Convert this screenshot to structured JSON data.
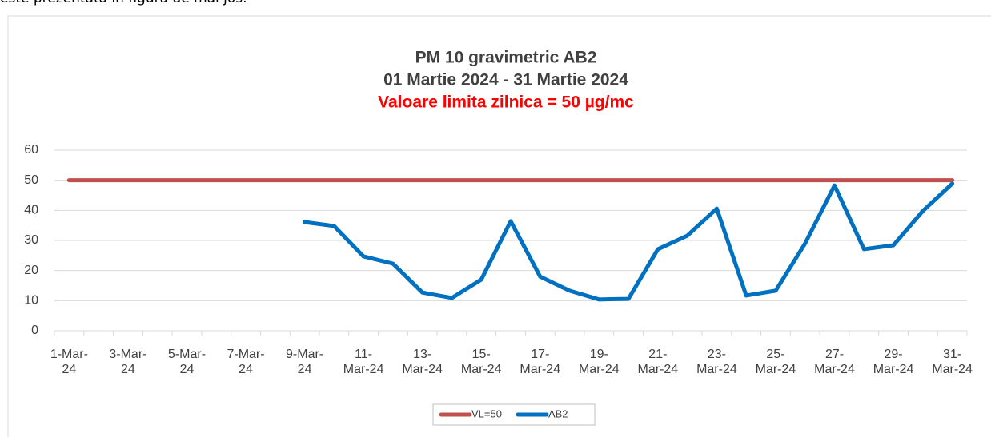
{
  "intro_text": "este prezentată în figura de mai jos.",
  "chart_data": {
    "type": "line",
    "title": "PM 10 gravimetric AB2",
    "subtitle": "01 Martie 2024 - 31 Martie 2024",
    "annotation": "Valoare limita zilnica = 50 µg/mc",
    "categories": [
      "1-Mar-24",
      null,
      "3-Mar-24",
      null,
      "5-Mar-24",
      null,
      "7-Mar-24",
      null,
      "9-Mar-24",
      null,
      "11-Mar-24",
      null,
      "13-Mar-24",
      null,
      "15-Mar-24",
      null,
      "17-Mar-24",
      null,
      "19-Mar-24",
      null,
      "21-Mar-24",
      null,
      "23-Mar-24",
      null,
      "25-Mar-24",
      null,
      "27-Mar-24",
      null,
      "29-Mar-24",
      null,
      "31-Mar-24"
    ],
    "series": [
      {
        "name": "VL=50",
        "color": "#c0504d",
        "values": [
          50,
          50,
          50,
          50,
          50,
          50,
          50,
          50,
          50,
          50,
          50,
          50,
          50,
          50,
          50,
          50,
          50,
          50,
          50,
          50,
          50,
          50,
          50,
          50,
          50,
          50,
          50,
          50,
          50,
          50,
          50
        ]
      },
      {
        "name": "AB2",
        "color": "#0070c0",
        "values": [
          null,
          null,
          null,
          null,
          null,
          null,
          null,
          null,
          36.1,
          34.8,
          24.7,
          22.3,
          12.7,
          10.9,
          17,
          36.4,
          18,
          13.3,
          10.4,
          10.6,
          27.1,
          31.6,
          40.6,
          11.7,
          13.3,
          29,
          48.3,
          27.1,
          28.4,
          39.8,
          48.9
        ]
      }
    ],
    "ylim": [
      0,
      60
    ],
    "yticks": [
      0,
      10,
      20,
      30,
      40,
      50,
      60
    ],
    "grid": true,
    "legend": "bottom"
  }
}
